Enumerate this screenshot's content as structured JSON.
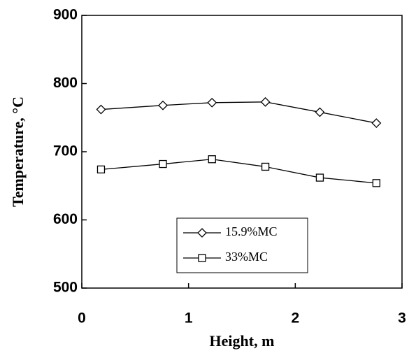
{
  "chart_data": {
    "type": "line",
    "x_label": "Height, m",
    "y_label": "Temperature, °C",
    "xlim": [
      0,
      3
    ],
    "xticks": [
      0,
      1,
      2,
      3
    ],
    "ylim": [
      500,
      900
    ],
    "yticks": [
      500,
      600,
      700,
      800,
      900
    ],
    "legend": "bottom-right",
    "series": [
      {
        "name": "15.9%MC",
        "marker": "diamond",
        "color": "#000000",
        "x": [
          0.18,
          0.76,
          1.22,
          1.72,
          2.23,
          2.76
        ],
        "values": [
          762,
          768,
          772,
          773,
          758,
          742
        ]
      },
      {
        "name": "33%MC",
        "marker": "square",
        "color": "#000000",
        "x": [
          0.18,
          0.76,
          1.22,
          1.72,
          2.23,
          2.76
        ],
        "values": [
          674,
          682,
          689,
          678,
          662,
          654
        ]
      }
    ]
  }
}
